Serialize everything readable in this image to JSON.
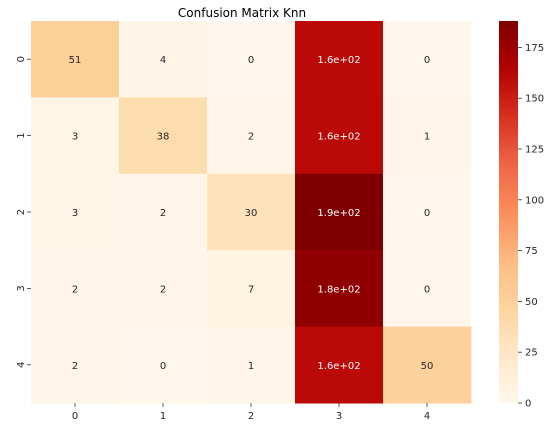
{
  "chart_data": {
    "type": "heatmap",
    "title": "Confusion Matrix Knn",
    "xlabel": "",
    "ylabel": "",
    "x_categories": [
      "0",
      "1",
      "2",
      "3",
      "4"
    ],
    "y_categories": [
      "0",
      "1",
      "2",
      "3",
      "4"
    ],
    "values": [
      [
        51,
        4,
        0,
        160,
        0
      ],
      [
        3,
        38,
        2,
        160,
        1
      ],
      [
        3,
        2,
        30,
        190,
        0
      ],
      [
        2,
        2,
        7,
        180,
        0
      ],
      [
        2,
        0,
        1,
        160,
        50
      ]
    ],
    "cell_labels": [
      [
        "51",
        "4",
        "0",
        "1.6e+02",
        "0"
      ],
      [
        "3",
        "38",
        "2",
        "1.6e+02",
        "1"
      ],
      [
        "3",
        "2",
        "30",
        "1.9e+02",
        "0"
      ],
      [
        "2",
        "2",
        "7",
        "1.8e+02",
        "0"
      ],
      [
        "2",
        "0",
        "1",
        "1.6e+02",
        "50"
      ]
    ],
    "colormap": "OrRd",
    "color_range": [
      0,
      188
    ],
    "colorbar_ticks": [
      "0",
      "25",
      "50",
      "75",
      "100",
      "125",
      "150",
      "175"
    ],
    "grid": false
  }
}
